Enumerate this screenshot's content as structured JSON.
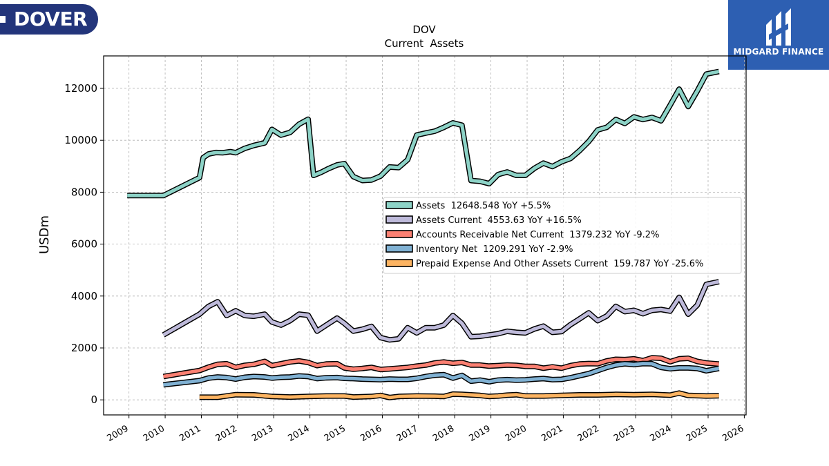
{
  "branding": {
    "left_logo": "DOVER",
    "right_logo": "MIDGARD FINANCE"
  },
  "chart_data": {
    "type": "line",
    "title": "DOV",
    "subtitle": "Current  Assets",
    "xlabel": "",
    "ylabel": "USDm",
    "xlim": [
      2008.3,
      2026.05
    ],
    "ylim": [
      -580,
      13250
    ],
    "x_ticks": [
      "2009",
      "2010",
      "2011",
      "2012",
      "2013",
      "2014",
      "2015",
      "2016",
      "2017",
      "2018",
      "2019",
      "2020",
      "2021",
      "2022",
      "2023",
      "2024",
      "2025",
      "2026"
    ],
    "y_ticks": [
      0,
      2000,
      4000,
      6000,
      8000,
      10000,
      12000
    ],
    "grid": true,
    "legend_position": "center-right",
    "series": [
      {
        "name": "Assets",
        "legend": "Assets  12648.548 YoY +5.5%",
        "color": "#8dd3c7",
        "points": [
          [
            2008.95,
            7870
          ],
          [
            2009.95,
            7870
          ],
          [
            2010.95,
            8560
          ],
          [
            2011.05,
            9330
          ],
          [
            2011.2,
            9470
          ],
          [
            2011.4,
            9530
          ],
          [
            2011.6,
            9520
          ],
          [
            2011.8,
            9560
          ],
          [
            2011.95,
            9520
          ],
          [
            2012.2,
            9690
          ],
          [
            2012.45,
            9800
          ],
          [
            2012.75,
            9900
          ],
          [
            2012.95,
            10420
          ],
          [
            2013.2,
            10200
          ],
          [
            2013.45,
            10300
          ],
          [
            2013.7,
            10620
          ],
          [
            2013.95,
            10810
          ],
          [
            2014.1,
            8650
          ],
          [
            2014.3,
            8760
          ],
          [
            2014.5,
            8900
          ],
          [
            2014.75,
            9050
          ],
          [
            2014.95,
            9100
          ],
          [
            2015.2,
            8600
          ],
          [
            2015.45,
            8450
          ],
          [
            2015.7,
            8470
          ],
          [
            2015.95,
            8620
          ],
          [
            2016.2,
            8970
          ],
          [
            2016.45,
            8950
          ],
          [
            2016.7,
            9250
          ],
          [
            2016.95,
            10200
          ],
          [
            2017.2,
            10280
          ],
          [
            2017.45,
            10350
          ],
          [
            2017.7,
            10500
          ],
          [
            2017.95,
            10670
          ],
          [
            2018.2,
            10580
          ],
          [
            2018.45,
            8450
          ],
          [
            2018.7,
            8420
          ],
          [
            2018.95,
            8330
          ],
          [
            2019.2,
            8680
          ],
          [
            2019.45,
            8780
          ],
          [
            2019.7,
            8650
          ],
          [
            2019.95,
            8650
          ],
          [
            2020.2,
            8920
          ],
          [
            2020.45,
            9120
          ],
          [
            2020.7,
            8990
          ],
          [
            2020.95,
            9170
          ],
          [
            2021.2,
            9300
          ],
          [
            2021.45,
            9600
          ],
          [
            2021.7,
            9950
          ],
          [
            2021.95,
            10400
          ],
          [
            2022.2,
            10500
          ],
          [
            2022.45,
            10800
          ],
          [
            2022.7,
            10650
          ],
          [
            2022.95,
            10900
          ],
          [
            2023.2,
            10800
          ],
          [
            2023.45,
            10880
          ],
          [
            2023.7,
            10750
          ],
          [
            2023.95,
            11350
          ],
          [
            2024.2,
            11970
          ],
          [
            2024.45,
            11300
          ],
          [
            2024.7,
            11900
          ],
          [
            2024.95,
            12550
          ],
          [
            2025.3,
            12648.548
          ]
        ]
      },
      {
        "name": "Assets Current",
        "legend": "Assets Current  4553.63 YoY +16.5%",
        "color": "#bebada",
        "points": [
          [
            2009.95,
            2500
          ],
          [
            2010.95,
            3300
          ],
          [
            2011.2,
            3600
          ],
          [
            2011.45,
            3780
          ],
          [
            2011.7,
            3250
          ],
          [
            2011.95,
            3430
          ],
          [
            2012.2,
            3250
          ],
          [
            2012.45,
            3220
          ],
          [
            2012.75,
            3300
          ],
          [
            2012.95,
            3000
          ],
          [
            2013.2,
            2880
          ],
          [
            2013.45,
            3050
          ],
          [
            2013.7,
            3300
          ],
          [
            2013.95,
            3260
          ],
          [
            2014.2,
            2650
          ],
          [
            2014.45,
            2880
          ],
          [
            2014.75,
            3150
          ],
          [
            2014.95,
            2950
          ],
          [
            2015.2,
            2650
          ],
          [
            2015.45,
            2720
          ],
          [
            2015.7,
            2830
          ],
          [
            2015.95,
            2400
          ],
          [
            2016.2,
            2310
          ],
          [
            2016.45,
            2350
          ],
          [
            2016.7,
            2780
          ],
          [
            2016.95,
            2580
          ],
          [
            2017.2,
            2780
          ],
          [
            2017.45,
            2780
          ],
          [
            2017.7,
            2880
          ],
          [
            2017.95,
            3250
          ],
          [
            2018.2,
            2950
          ],
          [
            2018.45,
            2430
          ],
          [
            2018.7,
            2450
          ],
          [
            2018.95,
            2500
          ],
          [
            2019.2,
            2550
          ],
          [
            2019.45,
            2640
          ],
          [
            2019.7,
            2600
          ],
          [
            2019.95,
            2580
          ],
          [
            2020.2,
            2730
          ],
          [
            2020.45,
            2840
          ],
          [
            2020.7,
            2600
          ],
          [
            2020.95,
            2630
          ],
          [
            2021.2,
            2900
          ],
          [
            2021.45,
            3120
          ],
          [
            2021.7,
            3350
          ],
          [
            2021.95,
            3050
          ],
          [
            2022.2,
            3230
          ],
          [
            2022.45,
            3600
          ],
          [
            2022.7,
            3400
          ],
          [
            2022.95,
            3450
          ],
          [
            2023.2,
            3320
          ],
          [
            2023.45,
            3450
          ],
          [
            2023.7,
            3480
          ],
          [
            2023.95,
            3420
          ],
          [
            2024.2,
            3950
          ],
          [
            2024.45,
            3300
          ],
          [
            2024.7,
            3650
          ],
          [
            2024.95,
            4450
          ],
          [
            2025.3,
            4553.63
          ]
        ]
      },
      {
        "name": "Accounts Receivable Net Current",
        "legend": "Accounts Receivable Net Current  1379.232 YoY -9.2%",
        "color": "#fb8072",
        "points": [
          [
            2009.95,
            900
          ],
          [
            2010.95,
            1130
          ],
          [
            2011.2,
            1260
          ],
          [
            2011.45,
            1370
          ],
          [
            2011.7,
            1390
          ],
          [
            2011.95,
            1250
          ],
          [
            2012.2,
            1330
          ],
          [
            2012.45,
            1370
          ],
          [
            2012.75,
            1480
          ],
          [
            2012.95,
            1320
          ],
          [
            2013.2,
            1390
          ],
          [
            2013.45,
            1460
          ],
          [
            2013.7,
            1500
          ],
          [
            2013.95,
            1440
          ],
          [
            2014.2,
            1320
          ],
          [
            2014.45,
            1380
          ],
          [
            2014.75,
            1390
          ],
          [
            2014.95,
            1230
          ],
          [
            2015.2,
            1180
          ],
          [
            2015.45,
            1210
          ],
          [
            2015.7,
            1250
          ],
          [
            2015.95,
            1170
          ],
          [
            2016.2,
            1190
          ],
          [
            2016.45,
            1220
          ],
          [
            2016.7,
            1250
          ],
          [
            2016.95,
            1300
          ],
          [
            2017.2,
            1340
          ],
          [
            2017.45,
            1420
          ],
          [
            2017.7,
            1460
          ],
          [
            2017.95,
            1410
          ],
          [
            2018.2,
            1440
          ],
          [
            2018.45,
            1340
          ],
          [
            2018.7,
            1340
          ],
          [
            2018.95,
            1300
          ],
          [
            2019.2,
            1320
          ],
          [
            2019.45,
            1340
          ],
          [
            2019.7,
            1330
          ],
          [
            2019.95,
            1290
          ],
          [
            2020.2,
            1290
          ],
          [
            2020.45,
            1220
          ],
          [
            2020.7,
            1270
          ],
          [
            2020.95,
            1220
          ],
          [
            2021.2,
            1320
          ],
          [
            2021.45,
            1380
          ],
          [
            2021.7,
            1400
          ],
          [
            2021.95,
            1390
          ],
          [
            2022.2,
            1500
          ],
          [
            2022.45,
            1560
          ],
          [
            2022.7,
            1550
          ],
          [
            2022.95,
            1580
          ],
          [
            2023.2,
            1510
          ],
          [
            2023.45,
            1620
          ],
          [
            2023.7,
            1600
          ],
          [
            2023.95,
            1470
          ],
          [
            2024.2,
            1580
          ],
          [
            2024.45,
            1600
          ],
          [
            2024.7,
            1480
          ],
          [
            2024.95,
            1420
          ],
          [
            2025.3,
            1379.232
          ]
        ]
      },
      {
        "name": "Inventory Net",
        "legend": "Inventory Net  1209.291 YoY -2.9%",
        "color": "#80b1d3",
        "points": [
          [
            2009.95,
            580
          ],
          [
            2010.95,
            740
          ],
          [
            2011.2,
            840
          ],
          [
            2011.45,
            880
          ],
          [
            2011.7,
            860
          ],
          [
            2011.95,
            800
          ],
          [
            2012.2,
            870
          ],
          [
            2012.45,
            900
          ],
          [
            2012.75,
            880
          ],
          [
            2012.95,
            840
          ],
          [
            2013.2,
            870
          ],
          [
            2013.45,
            880
          ],
          [
            2013.7,
            920
          ],
          [
            2013.95,
            900
          ],
          [
            2014.2,
            820
          ],
          [
            2014.45,
            850
          ],
          [
            2014.75,
            860
          ],
          [
            2014.95,
            830
          ],
          [
            2015.2,
            820
          ],
          [
            2015.45,
            800
          ],
          [
            2015.7,
            790
          ],
          [
            2015.95,
            780
          ],
          [
            2016.2,
            800
          ],
          [
            2016.45,
            790
          ],
          [
            2016.7,
            790
          ],
          [
            2016.95,
            830
          ],
          [
            2017.2,
            900
          ],
          [
            2017.45,
            950
          ],
          [
            2017.7,
            970
          ],
          [
            2017.95,
            840
          ],
          [
            2018.2,
            940
          ],
          [
            2018.45,
            720
          ],
          [
            2018.7,
            760
          ],
          [
            2018.95,
            700
          ],
          [
            2019.2,
            760
          ],
          [
            2019.45,
            780
          ],
          [
            2019.7,
            760
          ],
          [
            2019.95,
            770
          ],
          [
            2020.2,
            800
          ],
          [
            2020.45,
            820
          ],
          [
            2020.7,
            780
          ],
          [
            2020.95,
            790
          ],
          [
            2021.2,
            850
          ],
          [
            2021.45,
            930
          ],
          [
            2021.7,
            1010
          ],
          [
            2021.95,
            1130
          ],
          [
            2022.2,
            1250
          ],
          [
            2022.45,
            1340
          ],
          [
            2022.7,
            1390
          ],
          [
            2022.95,
            1360
          ],
          [
            2023.2,
            1400
          ],
          [
            2023.45,
            1390
          ],
          [
            2023.7,
            1250
          ],
          [
            2023.95,
            1200
          ],
          [
            2024.2,
            1230
          ],
          [
            2024.45,
            1230
          ],
          [
            2024.7,
            1210
          ],
          [
            2024.95,
            1120
          ],
          [
            2025.3,
            1209.291
          ]
        ]
      },
      {
        "name": "Prepaid Expense And Other Assets Current",
        "legend": "Prepaid Expense And Other Assets Current  159.787 YoY -25.6%",
        "color": "#fdb462",
        "points": [
          [
            2010.95,
            100
          ],
          [
            2011.45,
            100
          ],
          [
            2011.95,
            200
          ],
          [
            2012.45,
            190
          ],
          [
            2012.95,
            130
          ],
          [
            2013.45,
            110
          ],
          [
            2013.95,
            130
          ],
          [
            2014.45,
            150
          ],
          [
            2014.95,
            150
          ],
          [
            2015.2,
            110
          ],
          [
            2015.7,
            130
          ],
          [
            2015.95,
            170
          ],
          [
            2016.2,
            90
          ],
          [
            2016.45,
            130
          ],
          [
            2016.95,
            150
          ],
          [
            2017.45,
            140
          ],
          [
            2017.7,
            130
          ],
          [
            2017.95,
            220
          ],
          [
            2018.2,
            210
          ],
          [
            2018.45,
            190
          ],
          [
            2018.7,
            170
          ],
          [
            2018.95,
            130
          ],
          [
            2019.2,
            150
          ],
          [
            2019.45,
            180
          ],
          [
            2019.7,
            200
          ],
          [
            2019.95,
            150
          ],
          [
            2020.45,
            150
          ],
          [
            2020.95,
            170
          ],
          [
            2021.45,
            190
          ],
          [
            2021.95,
            190
          ],
          [
            2022.45,
            210
          ],
          [
            2022.95,
            200
          ],
          [
            2023.45,
            210
          ],
          [
            2023.95,
            180
          ],
          [
            2024.2,
            260
          ],
          [
            2024.45,
            170
          ],
          [
            2024.95,
            150
          ],
          [
            2025.3,
            159.787
          ]
        ]
      }
    ]
  }
}
